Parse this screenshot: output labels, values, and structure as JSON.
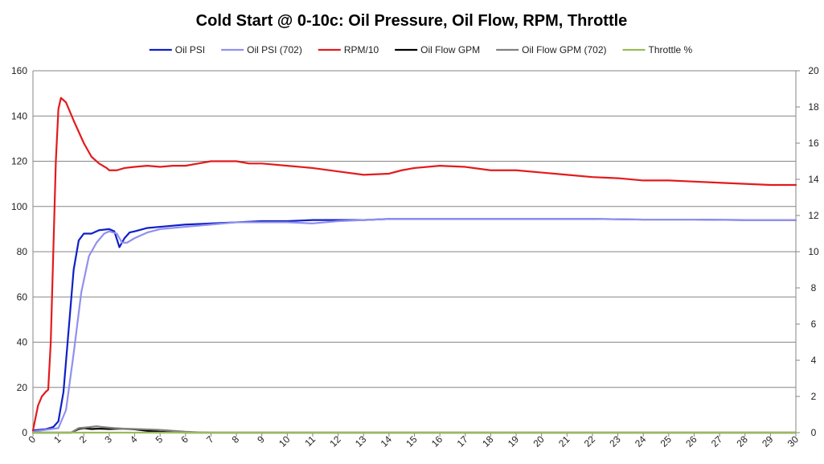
{
  "chart_data": {
    "type": "line",
    "title": "Cold Start @ 0-10c: Oil Pressure, Oil Flow, RPM, Throttle",
    "xlabel": "",
    "ylabel": "",
    "y2label": "",
    "xlim": [
      0,
      30
    ],
    "ylim": [
      0,
      160
    ],
    "y2lim": [
      0,
      20
    ],
    "x_ticks": [
      "0",
      "1",
      "2",
      "3",
      "4",
      "5",
      "6",
      "7",
      "8",
      "9",
      "10",
      "11",
      "12",
      "13",
      "14",
      "15",
      "16",
      "17",
      "18",
      "19",
      "20",
      "21",
      "22",
      "23",
      "24",
      "25",
      "26",
      "27",
      "28",
      "29",
      "30"
    ],
    "y_ticks": [
      "0",
      "20",
      "40",
      "60",
      "80",
      "100",
      "120",
      "140",
      "160"
    ],
    "y2_ticks": [
      "0",
      "2",
      "4",
      "6",
      "8",
      "10",
      "12",
      "14",
      "16",
      "18",
      "20"
    ],
    "grid": "horizontal",
    "legend_position": "top",
    "series": [
      {
        "name": "Oil PSI",
        "axis": "left",
        "color": "#0f1fc8",
        "points": [
          [
            0,
            1
          ],
          [
            0.5,
            1.5
          ],
          [
            0.8,
            2.5
          ],
          [
            1,
            5
          ],
          [
            1.2,
            18
          ],
          [
            1.4,
            45
          ],
          [
            1.6,
            72
          ],
          [
            1.8,
            85
          ],
          [
            2,
            88
          ],
          [
            2.3,
            88
          ],
          [
            2.6,
            89.5
          ],
          [
            3,
            90
          ],
          [
            3.2,
            89
          ],
          [
            3.4,
            82
          ],
          [
            3.6,
            86
          ],
          [
            3.8,
            88.5
          ],
          [
            4,
            89
          ],
          [
            4.5,
            90.5
          ],
          [
            5,
            91
          ],
          [
            6,
            92
          ],
          [
            7,
            92.5
          ],
          [
            8,
            93
          ],
          [
            9,
            93.5
          ],
          [
            10,
            93.5
          ],
          [
            11,
            94
          ],
          [
            12,
            94
          ],
          [
            13,
            94
          ],
          [
            14,
            94.5
          ],
          [
            15,
            94.5
          ],
          [
            16,
            94.5
          ],
          [
            17,
            94.5
          ],
          [
            18,
            94.5
          ],
          [
            19,
            94.5
          ],
          [
            20,
            94.5
          ],
          [
            22,
            94.5
          ],
          [
            24,
            94.2
          ],
          [
            26,
            94.2
          ],
          [
            28,
            94
          ],
          [
            30,
            94
          ]
        ]
      },
      {
        "name": "Oil PSI (702)",
        "axis": "left",
        "color": "#9090ee",
        "points": [
          [
            0,
            0.5
          ],
          [
            1,
            2
          ],
          [
            1.3,
            10
          ],
          [
            1.6,
            35
          ],
          [
            1.9,
            62
          ],
          [
            2.2,
            78
          ],
          [
            2.5,
            84
          ],
          [
            2.8,
            88
          ],
          [
            3,
            89
          ],
          [
            3.3,
            88
          ],
          [
            3.5,
            84
          ],
          [
            3.7,
            84
          ],
          [
            4,
            86
          ],
          [
            4.5,
            88.5
          ],
          [
            5,
            90
          ],
          [
            6,
            91
          ],
          [
            7,
            92
          ],
          [
            8,
            93
          ],
          [
            9,
            93
          ],
          [
            10,
            93
          ],
          [
            11,
            92.5
          ],
          [
            12,
            93.5
          ],
          [
            13,
            94
          ],
          [
            14,
            94.5
          ],
          [
            15,
            94.5
          ],
          [
            16,
            94.5
          ],
          [
            18,
            94.5
          ],
          [
            20,
            94.5
          ],
          [
            22,
            94.5
          ],
          [
            24,
            94.2
          ],
          [
            26,
            94.2
          ],
          [
            28,
            94
          ],
          [
            30,
            94
          ]
        ]
      },
      {
        "name": "RPM/10",
        "axis": "left",
        "color": "#e31a1c",
        "points": [
          [
            0,
            1
          ],
          [
            0.2,
            12
          ],
          [
            0.35,
            16
          ],
          [
            0.5,
            18
          ],
          [
            0.6,
            19
          ],
          [
            0.7,
            40
          ],
          [
            0.8,
            80
          ],
          [
            0.9,
            120
          ],
          [
            1,
            143
          ],
          [
            1.1,
            148
          ],
          [
            1.3,
            146
          ],
          [
            1.6,
            138
          ],
          [
            2,
            128
          ],
          [
            2.3,
            122
          ],
          [
            2.6,
            119
          ],
          [
            2.9,
            117
          ],
          [
            3,
            116
          ],
          [
            3.3,
            116
          ],
          [
            3.6,
            117
          ],
          [
            4,
            117.5
          ],
          [
            4.5,
            118
          ],
          [
            5,
            117.5
          ],
          [
            5.5,
            118
          ],
          [
            6,
            118
          ],
          [
            6.5,
            119
          ],
          [
            7,
            120
          ],
          [
            8,
            120
          ],
          [
            8.5,
            119
          ],
          [
            9,
            119
          ],
          [
            10,
            118
          ],
          [
            11,
            117
          ],
          [
            12,
            115.5
          ],
          [
            13,
            114
          ],
          [
            14,
            114.5
          ],
          [
            14.5,
            116
          ],
          [
            15,
            117
          ],
          [
            16,
            118
          ],
          [
            17,
            117.5
          ],
          [
            18,
            116
          ],
          [
            19,
            116
          ],
          [
            20,
            115
          ],
          [
            21,
            114
          ],
          [
            22,
            113
          ],
          [
            23,
            112.5
          ],
          [
            24,
            111.5
          ],
          [
            25,
            111.5
          ],
          [
            26,
            111
          ],
          [
            27,
            110.5
          ],
          [
            28,
            110
          ],
          [
            29,
            109.5
          ],
          [
            30,
            109.5
          ]
        ]
      },
      {
        "name": "Oil Flow GPM",
        "axis": "right",
        "color": "#000000",
        "points": [
          [
            0,
            0
          ],
          [
            1.5,
            0
          ],
          [
            1.8,
            0.2
          ],
          [
            2,
            0.25
          ],
          [
            2.3,
            0.2
          ],
          [
            2.6,
            0.22
          ],
          [
            3,
            0.2
          ],
          [
            3.5,
            0.22
          ],
          [
            4,
            0.18
          ],
          [
            4.5,
            0.1
          ],
          [
            5,
            0.05
          ],
          [
            5.5,
            0.02
          ],
          [
            6,
            0
          ],
          [
            30,
            0
          ]
        ]
      },
      {
        "name": "Oil Flow GPM (702)",
        "axis": "right",
        "color": "#808080",
        "points": [
          [
            0,
            0
          ],
          [
            1.5,
            0
          ],
          [
            1.8,
            0.25
          ],
          [
            2.2,
            0.3
          ],
          [
            2.5,
            0.35
          ],
          [
            2.8,
            0.3
          ],
          [
            3.2,
            0.25
          ],
          [
            3.6,
            0.22
          ],
          [
            4,
            0.2
          ],
          [
            4.5,
            0.18
          ],
          [
            5,
            0.15
          ],
          [
            5.5,
            0.1
          ],
          [
            6,
            0.05
          ],
          [
            6.5,
            0.02
          ],
          [
            7,
            0
          ],
          [
            30,
            0
          ]
        ]
      },
      {
        "name": "Throttle %",
        "axis": "left",
        "color": "#9bbb59",
        "points": [
          [
            0,
            0
          ],
          [
            30,
            0
          ]
        ]
      }
    ]
  }
}
